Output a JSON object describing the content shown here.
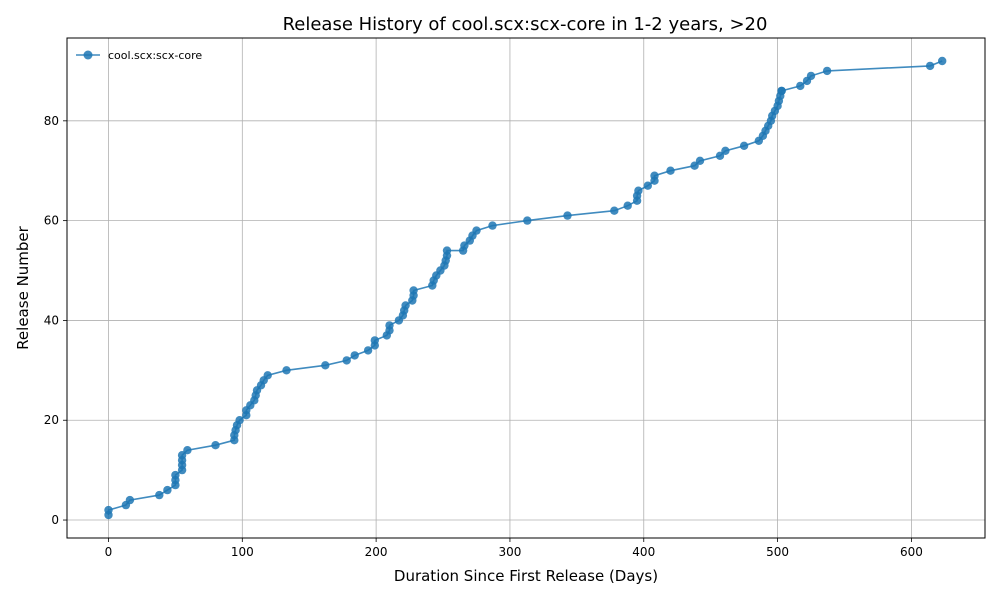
{
  "chart_data": {
    "type": "line",
    "title": "Release History of cool.scx:scx-core in 1-2 years, >20",
    "xlabel": "Duration Since First Release (Days)",
    "ylabel": "Release Number",
    "xlim": [
      -31,
      655
    ],
    "ylim": [
      -3.6,
      96.6
    ],
    "xticks": [
      0,
      100,
      200,
      300,
      400,
      500,
      600
    ],
    "yticks": [
      0,
      20,
      40,
      60,
      80
    ],
    "grid": true,
    "legend": "top-left",
    "series_color": "#1f77b4",
    "series": [
      {
        "name": "cool.scx:scx-core",
        "x": [
          0,
          0,
          13,
          16,
          38,
          44,
          50,
          50,
          50,
          55,
          55,
          55,
          55,
          59,
          80,
          94,
          94,
          95,
          96,
          98,
          103,
          103,
          106,
          109,
          110,
          111,
          114,
          116,
          119,
          133,
          162,
          178,
          184,
          194,
          199,
          199,
          208,
          210,
          210,
          217,
          220,
          221,
          222,
          227,
          228,
          228,
          242,
          243,
          245,
          248,
          251,
          252,
          253,
          253,
          265,
          266,
          270,
          272,
          275,
          287,
          313,
          343,
          378,
          388,
          395,
          395,
          396,
          403,
          408,
          408,
          420,
          438,
          442,
          457,
          461,
          475,
          486,
          489,
          491,
          493,
          495,
          496,
          498,
          500,
          501,
          502,
          503,
          503,
          517,
          522,
          525,
          537,
          614,
          623
        ],
        "y": [
          1,
          2,
          3,
          4,
          5,
          6,
          7,
          8,
          9,
          10,
          11,
          12,
          13,
          14,
          15,
          16,
          17,
          18,
          19,
          20,
          21,
          22,
          23,
          24,
          25,
          26,
          27,
          28,
          29,
          30,
          31,
          32,
          33,
          34,
          35,
          36,
          37,
          38,
          39,
          40,
          41,
          42,
          43,
          44,
          45,
          46,
          47,
          48,
          49,
          50,
          51,
          52,
          53,
          54,
          54,
          55,
          56,
          57,
          58,
          59,
          60,
          61,
          62,
          63,
          64,
          65,
          66,
          67,
          68,
          69,
          70,
          71,
          72,
          73,
          74,
          75,
          76,
          77,
          78,
          79,
          80,
          81,
          82,
          83,
          84,
          85,
          86,
          86,
          87,
          88,
          89,
          90,
          91,
          92
        ]
      }
    ]
  }
}
